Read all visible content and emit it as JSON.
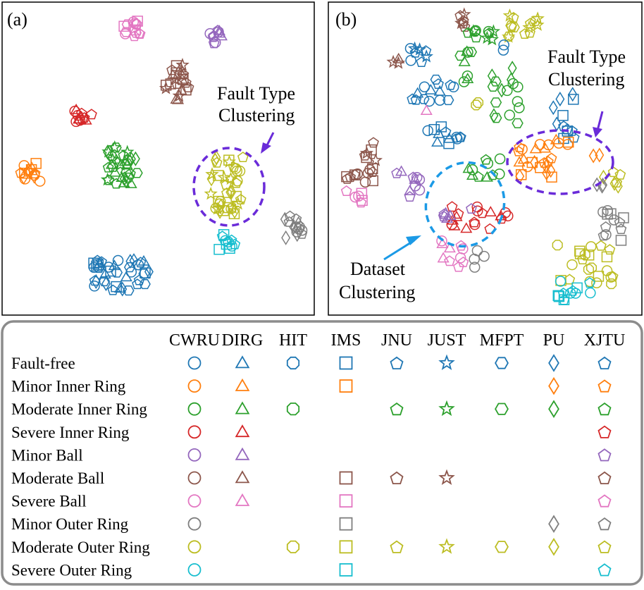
{
  "chart_data": [
    {
      "type": "scatter",
      "panel_label": "(a)",
      "annotations": [
        {
          "text_lines": [
            "Fault Type",
            "Clustering"
          ],
          "arrow_color": "#6a2bd9",
          "ellipse_color": "#6a2bd9"
        }
      ],
      "clusters": [
        {
          "class": "Severe Ball",
          "color": "#e377c2",
          "shapes": [
            "hexagon",
            "pentagon",
            "square",
            "circle"
          ]
        },
        {
          "class": "Minor Ball",
          "color": "#9467bd",
          "shapes": [
            "pentagon",
            "triangle",
            "circle"
          ]
        },
        {
          "class": "Moderate Ball",
          "color": "#8c564b",
          "shapes": [
            "triangle",
            "square",
            "pentagon",
            "star"
          ]
        },
        {
          "class": "Severe Inner Ring",
          "color": "#d62728",
          "shapes": [
            "triangle",
            "pentagon",
            "circle"
          ]
        },
        {
          "class": "Moderate Inner Ring",
          "color": "#2ca02c",
          "shapes": [
            "hexagon",
            "triangle",
            "diamond",
            "star",
            "pentagon"
          ]
        },
        {
          "class": "Minor Inner Ring",
          "color": "#ff7f0e",
          "shapes": [
            "diamond",
            "circle",
            "square",
            "pentagon"
          ]
        },
        {
          "class": "Moderate Outer Ring",
          "color": "#bcbd22",
          "shapes": [
            "star",
            "circle",
            "diamond",
            "square",
            "pentagon"
          ]
        },
        {
          "class": "Severe Outer Ring",
          "color": "#17becf",
          "shapes": [
            "square",
            "circle",
            "pentagon"
          ]
        },
        {
          "class": "Minor Outer Ring",
          "color": "#7f7f7f",
          "shapes": [
            "diamond",
            "circle",
            "pentagon"
          ]
        },
        {
          "class": "Fault-free",
          "color": "#1f77b4",
          "shapes": [
            "hexagon",
            "pentagon",
            "triangle",
            "diamond",
            "circle",
            "square"
          ]
        }
      ]
    },
    {
      "type": "scatter",
      "panel_label": "(b)",
      "annotations": [
        {
          "text_lines": [
            "Fault Type",
            "Clustering"
          ],
          "arrow_color": "#6a2bd9",
          "ellipse_color": "#6a2bd9"
        },
        {
          "text_lines": [
            "Dataset",
            "Clustering"
          ],
          "arrow_color": "#1b9ae6",
          "ellipse_color": "#1b9ae6"
        }
      ]
    }
  ],
  "legend": {
    "datasets": [
      "CWRU",
      "DIRG",
      "HIT",
      "IMS",
      "JNU",
      "JUST",
      "MFPT",
      "PU",
      "XJTU"
    ],
    "dataset_markers": {
      "CWRU": "circle",
      "DIRG": "triangle",
      "HIT": "octagon",
      "IMS": "square",
      "JNU": "pentagon",
      "JUST": "star",
      "MFPT": "hexagon",
      "PU": "diamond",
      "XJTU": "pentagon"
    },
    "classes": [
      {
        "name": "Fault-free",
        "color": "#1f77b4",
        "datasets": [
          "CWRU",
          "DIRG",
          "HIT",
          "IMS",
          "JNU",
          "JUST",
          "MFPT",
          "PU",
          "XJTU"
        ]
      },
      {
        "name": "Minor Inner Ring",
        "color": "#ff7f0e",
        "datasets": [
          "CWRU",
          "DIRG",
          "IMS",
          "PU",
          "XJTU"
        ]
      },
      {
        "name": "Moderate Inner Ring",
        "color": "#2ca02c",
        "datasets": [
          "CWRU",
          "DIRG",
          "HIT",
          "JNU",
          "JUST",
          "MFPT",
          "PU",
          "XJTU"
        ]
      },
      {
        "name": "Severe Inner Ring",
        "color": "#d62728",
        "datasets": [
          "CWRU",
          "DIRG",
          "XJTU"
        ]
      },
      {
        "name": "Minor Ball",
        "color": "#9467bd",
        "datasets": [
          "CWRU",
          "DIRG",
          "XJTU"
        ]
      },
      {
        "name": "Moderate Ball",
        "color": "#8c564b",
        "datasets": [
          "CWRU",
          "DIRG",
          "IMS",
          "JNU",
          "JUST",
          "XJTU"
        ]
      },
      {
        "name": "Severe Ball",
        "color": "#e377c2",
        "datasets": [
          "CWRU",
          "DIRG",
          "IMS",
          "XJTU"
        ]
      },
      {
        "name": "Minor Outer Ring",
        "color": "#7f7f7f",
        "datasets": [
          "CWRU",
          "IMS",
          "PU",
          "XJTU"
        ]
      },
      {
        "name": "Moderate Outer Ring",
        "color": "#bcbd22",
        "datasets": [
          "CWRU",
          "HIT",
          "IMS",
          "JNU",
          "JUST",
          "MFPT",
          "PU",
          "XJTU"
        ]
      },
      {
        "name": "Severe Outer Ring",
        "color": "#17becf",
        "datasets": [
          "CWRU",
          "IMS",
          "XJTU"
        ]
      }
    ]
  }
}
